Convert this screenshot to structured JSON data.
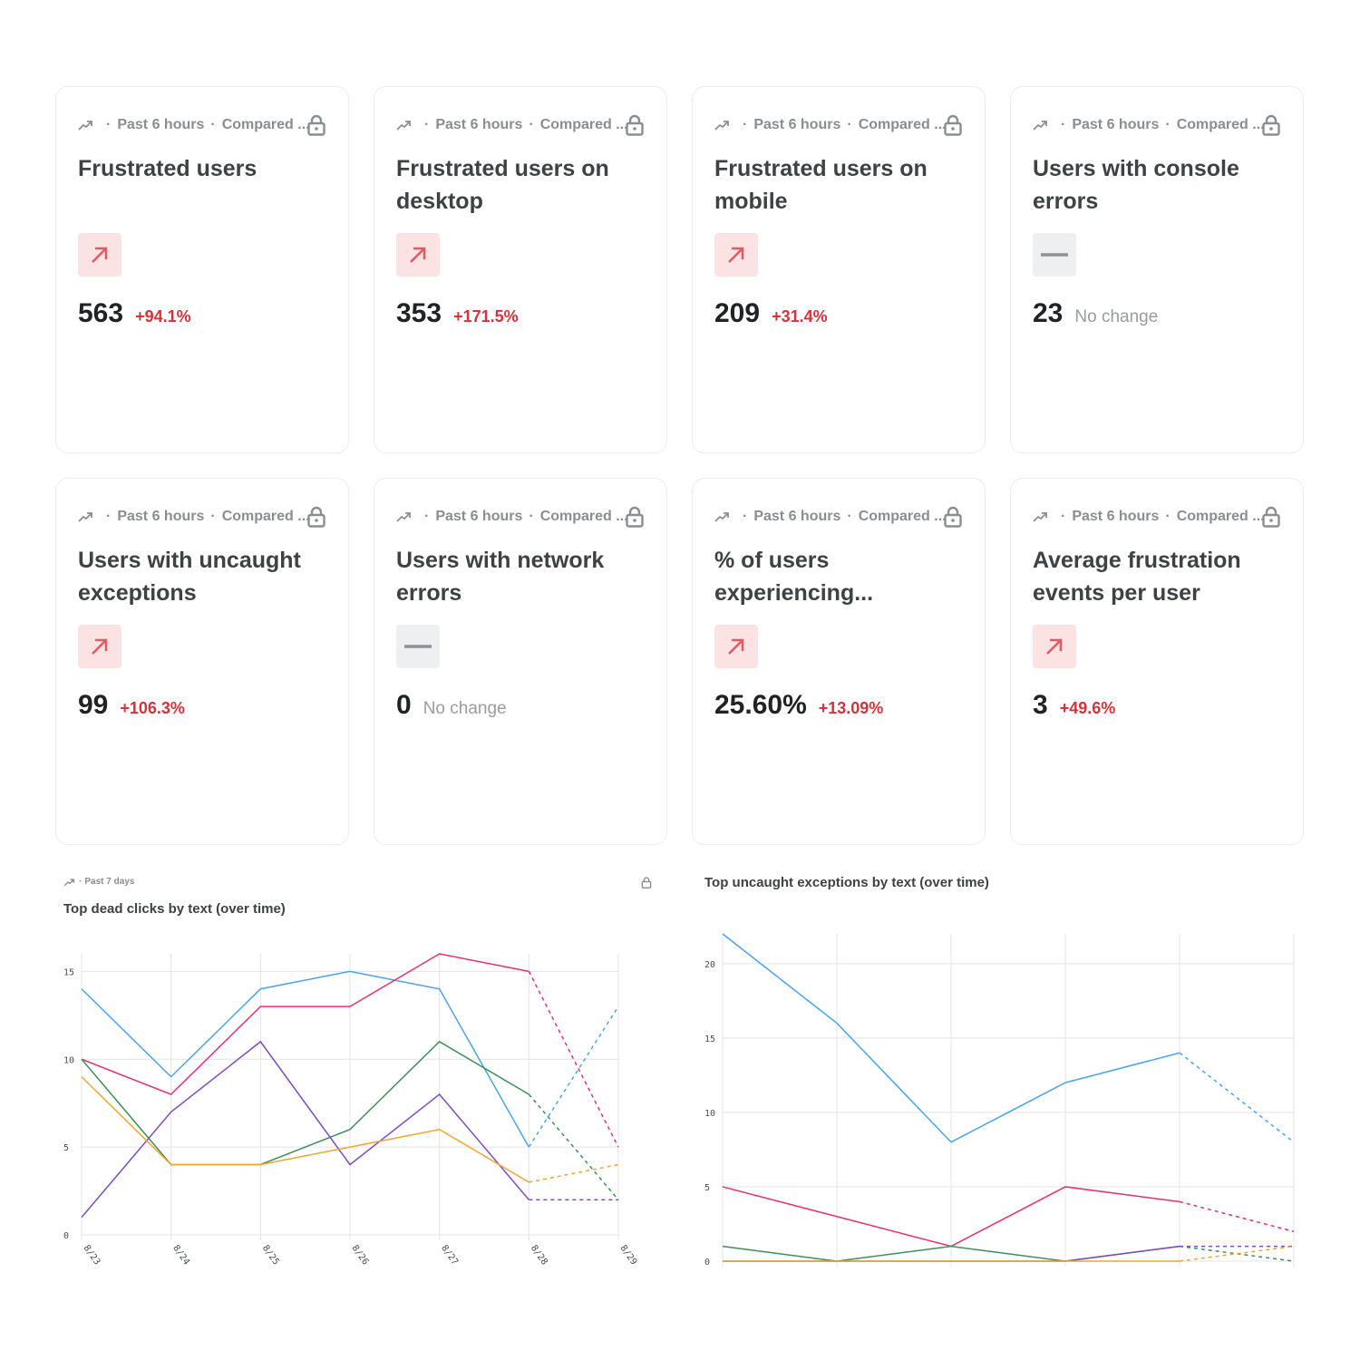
{
  "cards": [
    {
      "period": "Past 6 hours",
      "compare": "Compared ...",
      "title": "Frustrated users",
      "trend": "up",
      "value": "563",
      "change": "+94.1%"
    },
    {
      "period": "Past 6 hours",
      "compare": "Compared ...",
      "title": "Frustrated users on desktop",
      "trend": "up",
      "value": "353",
      "change": "+171.5%"
    },
    {
      "period": "Past 6 hours",
      "compare": "Compared ...",
      "title": "Frustrated users on mobile",
      "trend": "up",
      "value": "209",
      "change": "+31.4%"
    },
    {
      "period": "Past 6 hours",
      "compare": "Compared ...",
      "title": "Users with console errors",
      "trend": "flat",
      "value": "23",
      "change": "No change"
    },
    {
      "period": "Past 6 hours",
      "compare": "Compared ...",
      "title": "Users with uncaught exceptions",
      "trend": "up",
      "value": "99",
      "change": "+106.3%"
    },
    {
      "period": "Past 6 hours",
      "compare": "Compared ...",
      "title": "Users with network errors",
      "trend": "flat",
      "value": "0",
      "change": "No change"
    },
    {
      "period": "Past 6 hours",
      "compare": "Compared ...",
      "title": "% of users experiencing...",
      "trend": "up",
      "value": "25.60%",
      "change": "+13.09%"
    },
    {
      "period": "Past 6 hours",
      "compare": "Compared ...",
      "title": "Average frustration events per user",
      "trend": "up",
      "value": "3",
      "change": "+49.6%"
    }
  ],
  "colors": {
    "up_icon": "#e25b63",
    "flat_icon": "#8e9195",
    "grid": "#e3e4e6",
    "axis_text": "#4a4d50"
  },
  "chart_data": [
    {
      "type": "line",
      "period": "Past 7 days",
      "title": "Top dead clicks by text (over time)",
      "categories": [
        "8/23",
        "8/24",
        "8/25",
        "8/26",
        "8/27",
        "8/28",
        "8/29"
      ],
      "ylim": [
        0,
        16
      ],
      "yticks": [
        0,
        5,
        10,
        15
      ],
      "dashed_from_index": 5,
      "grid": true,
      "series": [
        {
          "color": "#4aa3f0",
          "values": [
            14,
            9,
            14,
            15,
            14,
            5,
            13
          ]
        },
        {
          "color": "#e8306a",
          "values": [
            10,
            8,
            13,
            13,
            16,
            15,
            5
          ]
        },
        {
          "color": "#3d8f5a",
          "values": [
            10,
            4,
            4,
            6,
            11,
            8,
            2
          ]
        },
        {
          "color": "#7d4cc4",
          "values": [
            1,
            7,
            11,
            4,
            8,
            2,
            2
          ]
        },
        {
          "color": "#f2a52e",
          "values": [
            9,
            4,
            4,
            5,
            6,
            3,
            4
          ]
        }
      ]
    },
    {
      "type": "line",
      "title": "Top uncaught exceptions by text (over time)",
      "categories": [
        "",
        "",
        "",
        "",
        "",
        ""
      ],
      "ylim": [
        0,
        22
      ],
      "yticks": [
        0,
        5,
        10,
        15,
        20
      ],
      "dashed_from_index": 4,
      "grid": true,
      "series": [
        {
          "color": "#4aa3f0",
          "values": [
            22,
            16,
            8,
            12,
            14,
            8
          ]
        },
        {
          "color": "#e8306a",
          "values": [
            5,
            3,
            1,
            5,
            4,
            2
          ]
        },
        {
          "color": "#3d8f5a",
          "values": [
            1,
            0,
            1,
            0,
            1,
            0
          ]
        },
        {
          "color": "#7d4cc4",
          "values": [
            0,
            0,
            0,
            0,
            1,
            1
          ]
        },
        {
          "color": "#f2a52e",
          "values": [
            0,
            0,
            0,
            0,
            0,
            1
          ]
        }
      ]
    }
  ]
}
